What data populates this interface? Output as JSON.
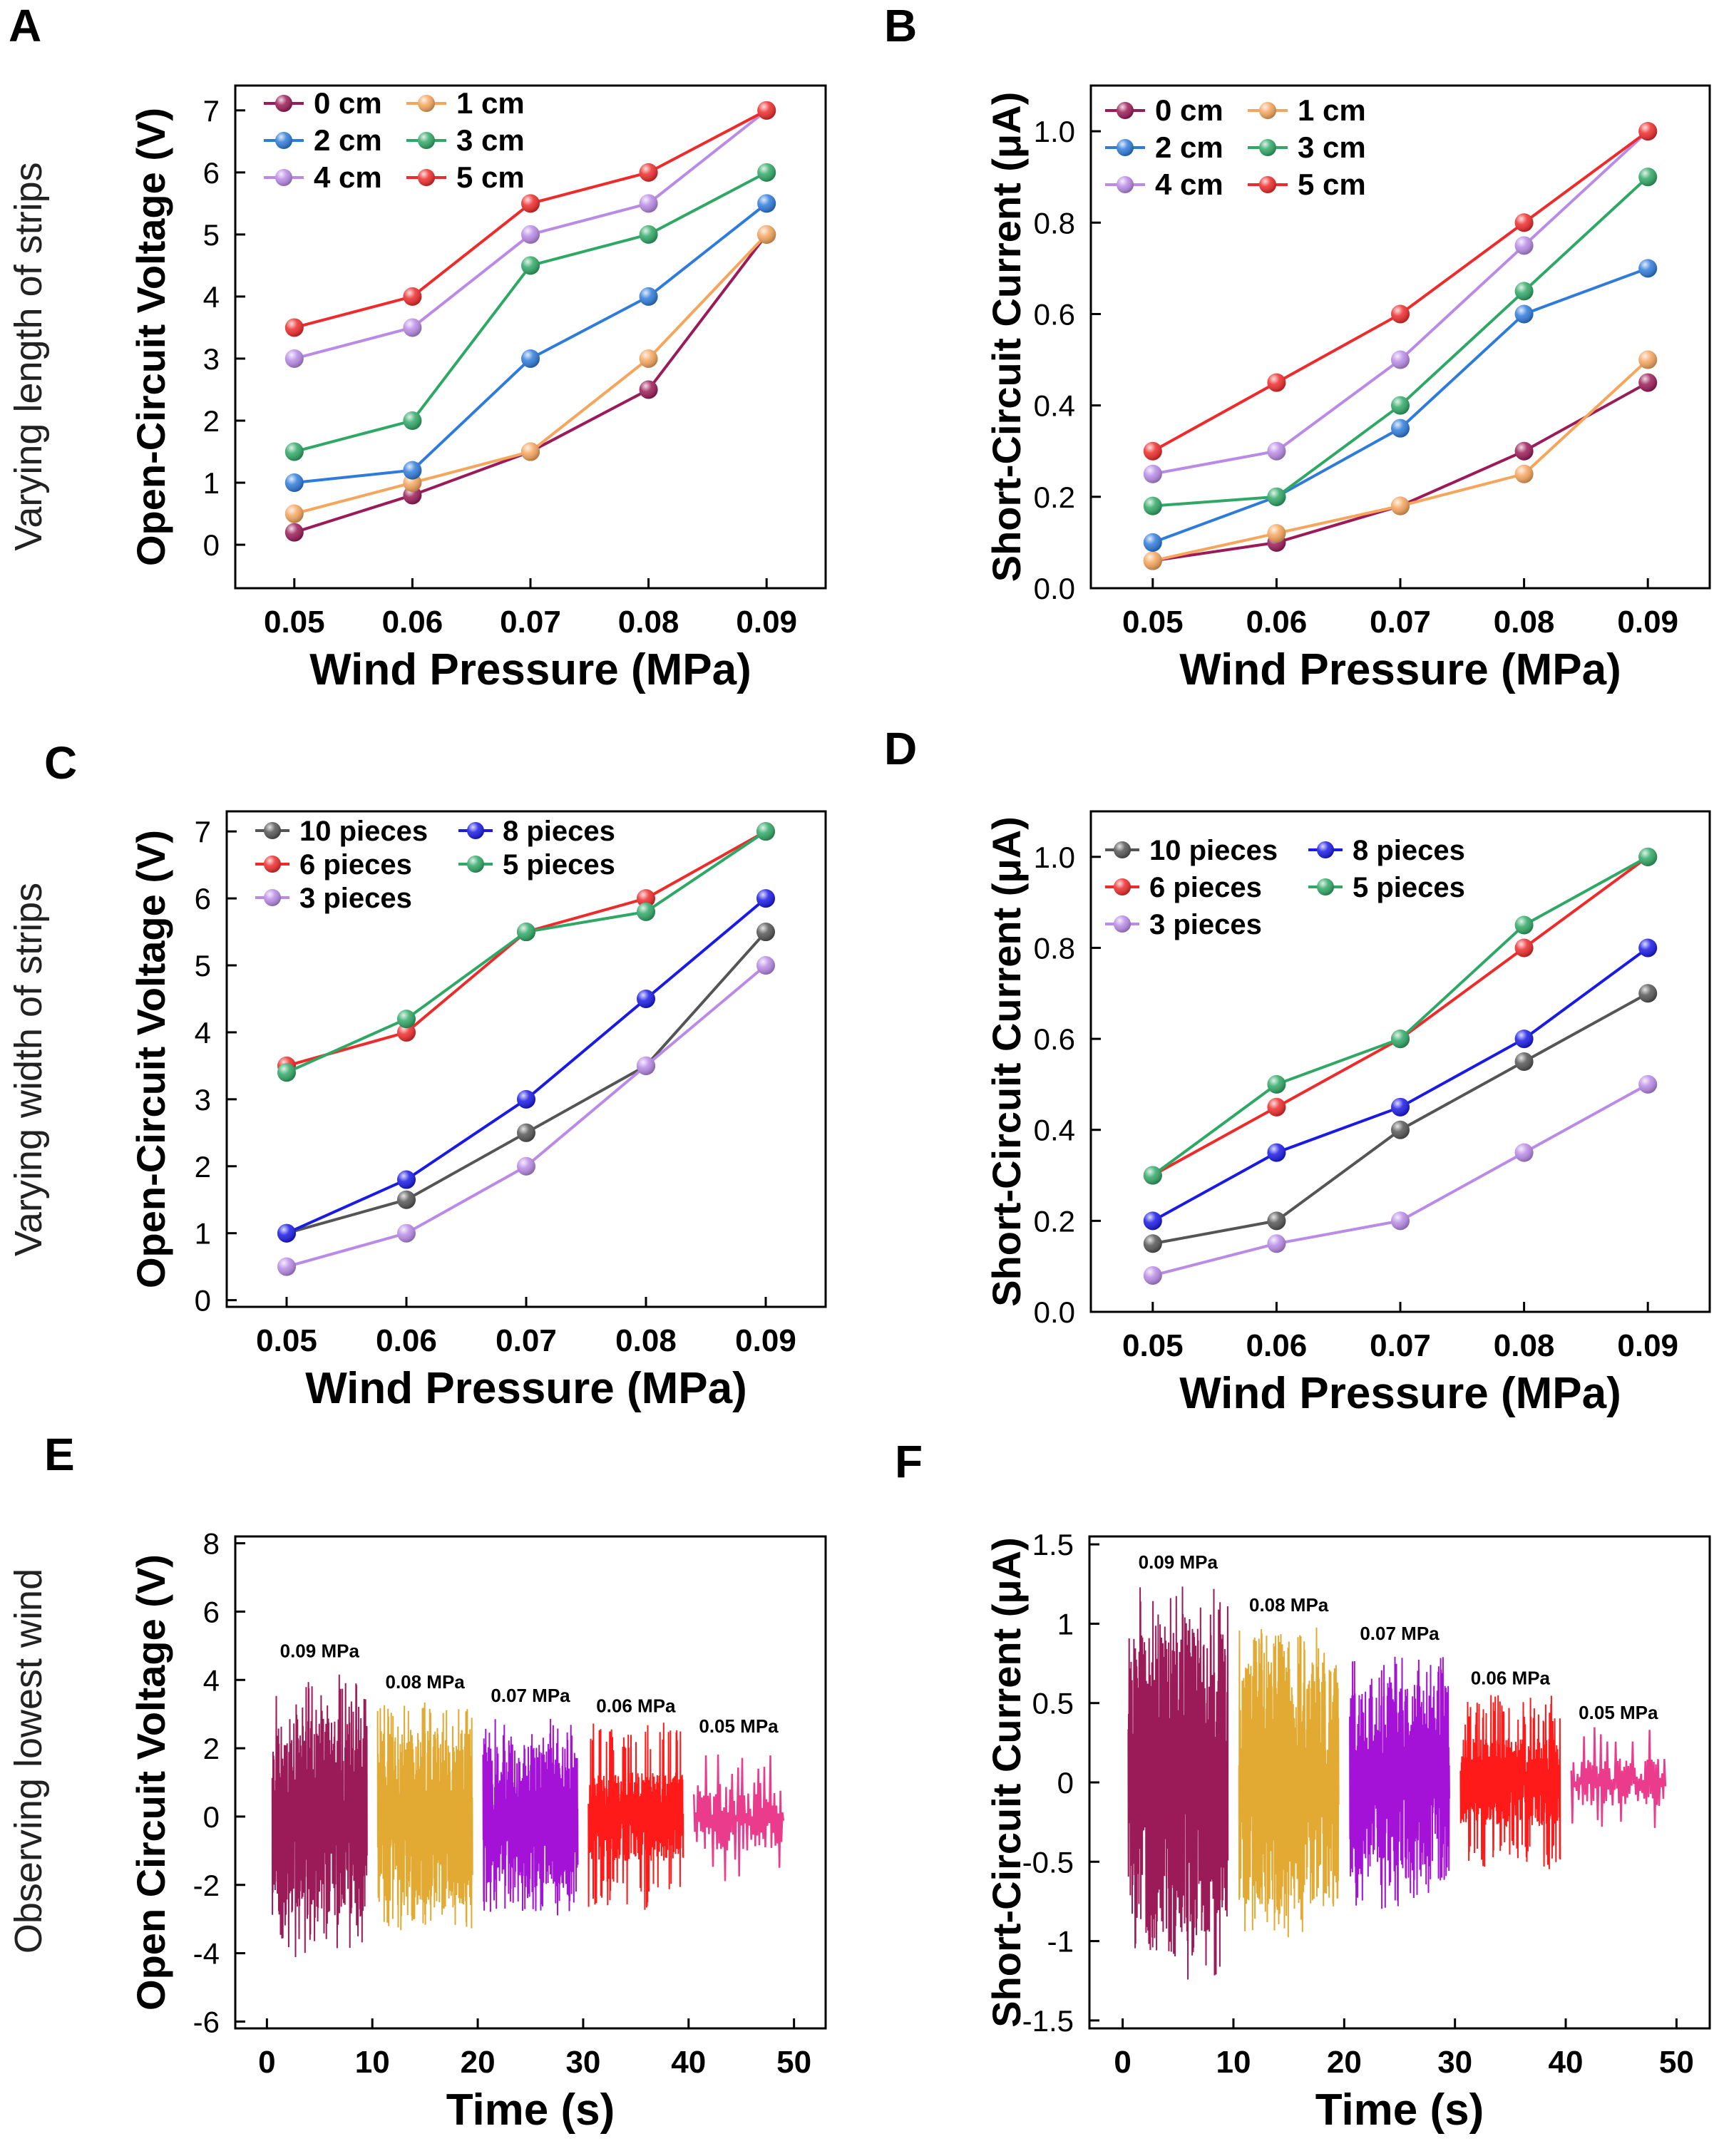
{
  "figure": {
    "row_labels": [
      "Varying length  of strips",
      "Varying width  of strips",
      "Observing  lowest  wind"
    ]
  },
  "chart_data": [
    {
      "panel": "A",
      "type": "line",
      "xlabel": "Wind Pressure (MPa)",
      "ylabel": "Open-Circuit Voltage (V)",
      "x": [
        0.05,
        0.06,
        0.07,
        0.08,
        0.09
      ],
      "xticks": [
        "0.05",
        "0.06",
        "0.07",
        "0.08",
        "0.09"
      ],
      "xlim": [
        0.045,
        0.095
      ],
      "ylim": [
        -0.7,
        7.4
      ],
      "yticks": [
        "0",
        "1",
        "2",
        "3",
        "4",
        "5",
        "6",
        "7"
      ],
      "legend": "top-left, 2 columns",
      "series": [
        {
          "name": "0 cm",
          "color": "#9b1b58",
          "values": [
            0.2,
            0.8,
            1.5,
            2.5,
            5.0
          ]
        },
        {
          "name": "1 cm",
          "color": "#f5a55c",
          "values": [
            0.5,
            1.0,
            1.5,
            3.0,
            5.0
          ]
        },
        {
          "name": "2 cm",
          "color": "#2e7bdb",
          "values": [
            1.0,
            1.2,
            3.0,
            4.0,
            5.5
          ]
        },
        {
          "name": "3 cm",
          "color": "#2fa866",
          "values": [
            1.5,
            2.0,
            4.5,
            5.0,
            6.0
          ]
        },
        {
          "name": "4 cm",
          "color": "#b98ae6",
          "values": [
            3.0,
            3.5,
            5.0,
            5.5,
            7.0
          ]
        },
        {
          "name": "5 cm",
          "color": "#ee2b2b",
          "values": [
            3.5,
            4.0,
            5.5,
            6.0,
            7.0
          ]
        }
      ]
    },
    {
      "panel": "B",
      "type": "line",
      "xlabel": "Wind Pressure (MPa)",
      "ylabel": "Short-Circuit Current (μA)",
      "x": [
        0.05,
        0.06,
        0.07,
        0.08,
        0.09
      ],
      "xticks": [
        "0.05",
        "0.06",
        "0.07",
        "0.08",
        "0.09"
      ],
      "xlim": [
        0.045,
        0.095
      ],
      "ylim": [
        0.0,
        1.1
      ],
      "yticks": [
        "0.0",
        "0.2",
        "0.4",
        "0.6",
        "0.8",
        "1.0"
      ],
      "legend": "top-left, 2 columns",
      "series": [
        {
          "name": "0 cm",
          "color": "#9b1b58",
          "values": [
            0.06,
            0.1,
            0.18,
            0.3,
            0.45
          ]
        },
        {
          "name": "1 cm",
          "color": "#f5a55c",
          "values": [
            0.06,
            0.12,
            0.18,
            0.25,
            0.5
          ]
        },
        {
          "name": "2 cm",
          "color": "#2e7bdb",
          "values": [
            0.1,
            0.2,
            0.35,
            0.6,
            0.7
          ]
        },
        {
          "name": "3 cm",
          "color": "#2fa866",
          "values": [
            0.18,
            0.2,
            0.4,
            0.65,
            0.9
          ]
        },
        {
          "name": "4 cm",
          "color": "#b98ae6",
          "values": [
            0.25,
            0.3,
            0.5,
            0.75,
            1.0
          ]
        },
        {
          "name": "5 cm",
          "color": "#ee2b2b",
          "values": [
            0.3,
            0.45,
            0.6,
            0.8,
            1.0
          ]
        }
      ]
    },
    {
      "panel": "C",
      "type": "line",
      "xlabel": "Wind Pressure (MPa)",
      "ylabel": "Open-Circuit Voltage (V)",
      "x": [
        0.05,
        0.06,
        0.07,
        0.08,
        0.09
      ],
      "xticks": [
        "0.05",
        "0.06",
        "0.07",
        "0.08",
        "0.09"
      ],
      "xlim": [
        0.045,
        0.095
      ],
      "ylim": [
        -0.1,
        7.3
      ],
      "yticks": [
        "0",
        "1",
        "2",
        "3",
        "4",
        "5",
        "6",
        "7"
      ],
      "legend": "top-left, 2 columns",
      "series": [
        {
          "name": "10 pieces",
          "color": "#555555",
          "values": [
            1.0,
            1.5,
            2.5,
            3.5,
            5.5
          ]
        },
        {
          "name": "8 pieces",
          "color": "#1a1ae6",
          "values": [
            1.0,
            1.8,
            3.0,
            4.5,
            6.0
          ]
        },
        {
          "name": "6 pieces",
          "color": "#ee2b2b",
          "values": [
            3.5,
            4.0,
            5.5,
            6.0,
            7.0
          ]
        },
        {
          "name": "5 pieces",
          "color": "#2fa866",
          "values": [
            3.4,
            4.2,
            5.5,
            5.8,
            7.0
          ]
        },
        {
          "name": "3 pieces",
          "color": "#b98ae6",
          "values": [
            0.5,
            1.0,
            2.0,
            3.5,
            5.0
          ]
        }
      ]
    },
    {
      "panel": "D",
      "type": "line",
      "xlabel": "Wind Pressure (MPa)",
      "ylabel": "Short-Circuit  Current  (μA)",
      "x": [
        0.05,
        0.06,
        0.07,
        0.08,
        0.09
      ],
      "xticks": [
        "0.05",
        "0.06",
        "0.07",
        "0.08",
        "0.09"
      ],
      "xlim": [
        0.045,
        0.095
      ],
      "ylim": [
        0.0,
        1.1
      ],
      "yticks": [
        "0.0",
        "0.2",
        "0.4",
        "0.6",
        "0.8",
        "1.0"
      ],
      "legend": "top-left, 2 columns",
      "series": [
        {
          "name": "10 pieces",
          "color": "#555555",
          "values": [
            0.15,
            0.2,
            0.4,
            0.55,
            0.7
          ]
        },
        {
          "name": "8 pieces",
          "color": "#1a1ae6",
          "values": [
            0.2,
            0.35,
            0.45,
            0.6,
            0.8
          ]
        },
        {
          "name": "6 pieces",
          "color": "#ee2b2b",
          "values": [
            0.3,
            0.45,
            0.6,
            0.8,
            1.0
          ]
        },
        {
          "name": "5 pieces",
          "color": "#2fa866",
          "values": [
            0.3,
            0.5,
            0.6,
            0.85,
            1.0
          ]
        },
        {
          "name": "3 pieces",
          "color": "#b98ae6",
          "values": [
            0.08,
            0.15,
            0.2,
            0.35,
            0.5
          ]
        }
      ]
    },
    {
      "panel": "E",
      "type": "line",
      "xlabel": "Time (s)",
      "ylabel": "Open Circuit Voltage (V)",
      "xlim": [
        -3,
        53
      ],
      "ylim": [
        -6.2,
        8.2
      ],
      "xticks": [
        "0",
        "10",
        "20",
        "30",
        "40",
        "50"
      ],
      "xtick_values": [
        0,
        10,
        20,
        30,
        40,
        50
      ],
      "yticks": [
        "-6",
        "-4",
        "-2",
        "0",
        "2",
        "4",
        "6",
        "8"
      ],
      "ytick_values": [
        -6,
        -4,
        -2,
        0,
        2,
        4,
        6,
        8
      ],
      "segments": [
        {
          "label": "0.09 MPa",
          "color": "#9b1b58",
          "t_start": 0.5,
          "t_end": 9.5,
          "min": -4.0,
          "max": 4.2,
          "body": 2.9
        },
        {
          "label": "0.08 MPa",
          "color": "#e2aa33",
          "t_start": 10.5,
          "t_end": 19.5,
          "min": -3.4,
          "max": 3.3,
          "body": 2.6
        },
        {
          "label": "0.07 MPa",
          "color": "#a312d6",
          "t_start": 20.5,
          "t_end": 29.5,
          "min": -2.8,
          "max": 2.9,
          "body": 2.1
        },
        {
          "label": "0.06 MPa",
          "color": "#ff1a1a",
          "t_start": 30.5,
          "t_end": 39.5,
          "min": -2.8,
          "max": 2.6,
          "body": 1.3
        },
        {
          "label": "0.05 MPa",
          "color": "#ea3b8c",
          "t_start": 40.5,
          "t_end": 49.0,
          "min": -1.6,
          "max": 2.0,
          "body": 1.0
        }
      ]
    },
    {
      "panel": "F",
      "type": "line",
      "xlabel": "Time (s)",
      "ylabel": "Short-Circuit Current (μA)",
      "xlim": [
        -3,
        53
      ],
      "ylim": [
        -1.55,
        1.55
      ],
      "xticks": [
        "0",
        "10",
        "20",
        "30",
        "40",
        "50"
      ],
      "xtick_values": [
        0,
        10,
        20,
        30,
        40,
        50
      ],
      "yticks": [
        "-1.5",
        "-1",
        "-0.5",
        "0",
        "0.5",
        "1",
        "1.5"
      ],
      "ytick_values": [
        -1.5,
        -1,
        -0.5,
        0,
        0.5,
        1,
        1.5
      ],
      "segments": [
        {
          "label": "0.09 MPa",
          "color": "#9b1b58",
          "t_start": 0.5,
          "t_end": 9.5,
          "min": -1.2,
          "max": 1.25,
          "body": 0.95
        },
        {
          "label": "0.08 MPa",
          "color": "#e2aa33",
          "t_start": 10.5,
          "t_end": 19.5,
          "min": -0.95,
          "max": 0.98,
          "body": 0.78
        },
        {
          "label": "0.07 MPa",
          "color": "#a312d6",
          "t_start": 20.5,
          "t_end": 29.5,
          "min": -0.75,
          "max": 0.8,
          "body": 0.62
        },
        {
          "label": "0.06 MPa",
          "color": "#ff1a1a",
          "t_start": 30.5,
          "t_end": 39.5,
          "min": -0.55,
          "max": 0.52,
          "body": 0.28
        },
        {
          "label": "0.05 MPa",
          "color": "#ea3b8c",
          "t_start": 40.5,
          "t_end": 49.0,
          "min": -0.35,
          "max": 0.3,
          "body": 0.15
        }
      ]
    }
  ]
}
